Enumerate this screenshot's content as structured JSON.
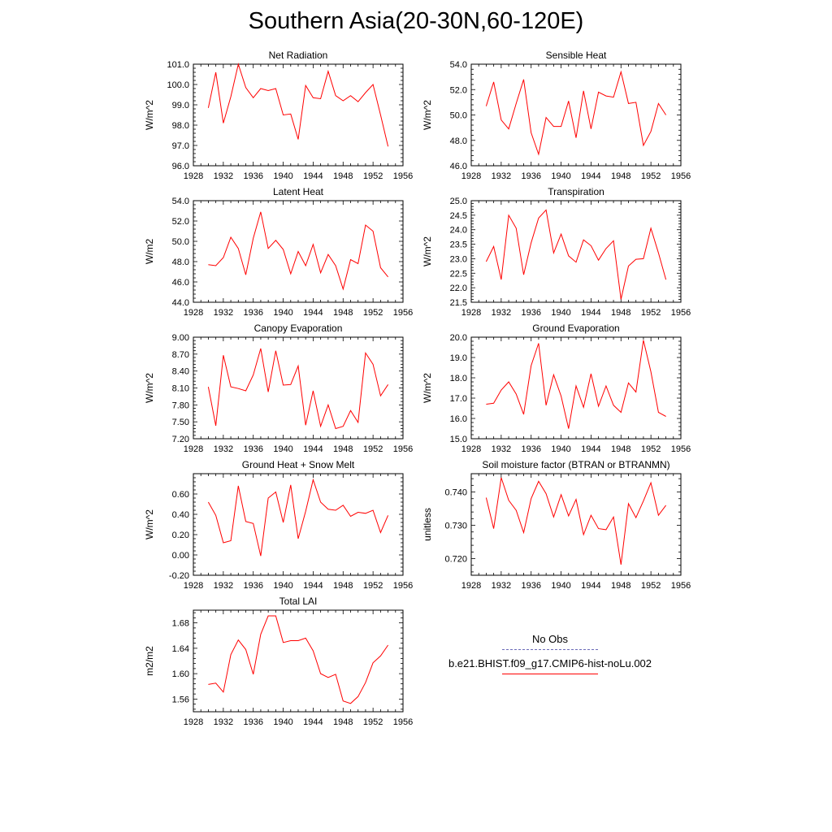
{
  "title": "Southern Asia(20-30N,60-120E)",
  "colors": {
    "series": "#ff0000",
    "obs": "#6a6ab8",
    "axis": "#000000"
  },
  "legend": {
    "obs_label": "No Obs",
    "model_label": "b.e21.BHIST.f09_g17.CMIP6-hist-noLu.002"
  },
  "chart_data": [
    {
      "type": "line",
      "title": "Net Radiation",
      "ylabel": "W/m^2",
      "xlim": [
        1928,
        1956
      ],
      "xticks": [
        1928,
        1932,
        1936,
        1940,
        1944,
        1948,
        1952,
        1956
      ],
      "ylim": [
        96.0,
        101.0
      ],
      "yticks": [
        "96.0",
        "97.0",
        "98.0",
        "99.0",
        "100.0",
        "101.0"
      ],
      "series": [
        {
          "x": [
            1930,
            1931,
            1932,
            1933,
            1934,
            1935,
            1936,
            1937,
            1938,
            1939,
            1940,
            1941,
            1942,
            1943,
            1944,
            1945,
            1946,
            1947,
            1948,
            1949,
            1950,
            1951,
            1952,
            1953,
            1954
          ],
          "values": [
            98.85,
            100.6,
            98.1,
            99.4,
            101.0,
            99.85,
            99.35,
            99.8,
            99.7,
            99.8,
            98.5,
            98.55,
            97.3,
            99.95,
            99.35,
            99.3,
            100.65,
            99.45,
            99.2,
            99.45,
            99.15,
            99.6,
            100.0,
            98.5,
            96.95
          ]
        }
      ]
    },
    {
      "type": "line",
      "title": "Sensible Heat",
      "ylabel": "W/m^2",
      "xlim": [
        1928,
        1956
      ],
      "xticks": [
        1928,
        1932,
        1936,
        1940,
        1944,
        1948,
        1952,
        1956
      ],
      "ylim": [
        46.0,
        54.0
      ],
      "yticks": [
        "46.0",
        "48.0",
        "50.0",
        "52.0",
        "54.0"
      ],
      "series": [
        {
          "x": [
            1930,
            1931,
            1932,
            1933,
            1934,
            1935,
            1936,
            1937,
            1938,
            1939,
            1940,
            1941,
            1942,
            1943,
            1944,
            1945,
            1946,
            1947,
            1948,
            1949,
            1950,
            1951,
            1952,
            1953,
            1954
          ],
          "values": [
            50.7,
            52.6,
            49.6,
            48.9,
            50.9,
            52.8,
            48.6,
            46.9,
            49.8,
            49.1,
            49.1,
            51.1,
            48.2,
            51.9,
            48.9,
            51.8,
            51.5,
            51.4,
            53.4,
            50.9,
            51.0,
            47.6,
            48.7,
            50.9,
            50.0
          ]
        }
      ]
    },
    {
      "type": "line",
      "title": "Latent Heat",
      "ylabel": "W/m2",
      "xlim": [
        1928,
        1956
      ],
      "xticks": [
        1928,
        1932,
        1936,
        1940,
        1944,
        1948,
        1952,
        1956
      ],
      "ylim": [
        44.0,
        54.0
      ],
      "yticks": [
        "44.0",
        "46.0",
        "48.0",
        "50.0",
        "52.0",
        "54.0"
      ],
      "series": [
        {
          "x": [
            1930,
            1931,
            1932,
            1933,
            1934,
            1935,
            1936,
            1937,
            1938,
            1939,
            1940,
            1941,
            1942,
            1943,
            1944,
            1945,
            1946,
            1947,
            1948,
            1949,
            1950,
            1951,
            1952,
            1953,
            1954
          ],
          "values": [
            47.7,
            47.6,
            48.4,
            50.4,
            49.3,
            46.7,
            50.3,
            52.9,
            49.3,
            50.1,
            49.2,
            46.8,
            49.0,
            47.6,
            49.7,
            46.9,
            48.7,
            47.6,
            45.3,
            48.2,
            47.8,
            51.6,
            51.0,
            47.4,
            46.5
          ]
        }
      ]
    },
    {
      "type": "line",
      "title": "Transpiration",
      "ylabel": "W/m^2",
      "xlim": [
        1928,
        1956
      ],
      "xticks": [
        1928,
        1932,
        1936,
        1940,
        1944,
        1948,
        1952,
        1956
      ],
      "ylim": [
        21.5,
        25.0
      ],
      "yticks": [
        "21.5",
        "22.0",
        "22.5",
        "23.0",
        "23.5",
        "24.0",
        "24.5",
        "25.0"
      ],
      "series": [
        {
          "x": [
            1930,
            1931,
            1932,
            1933,
            1934,
            1935,
            1936,
            1937,
            1938,
            1939,
            1940,
            1941,
            1942,
            1943,
            1944,
            1945,
            1946,
            1947,
            1948,
            1949,
            1950,
            1951,
            1952,
            1953,
            1954
          ],
          "values": [
            22.9,
            23.42,
            22.28,
            24.5,
            24.05,
            22.45,
            23.55,
            24.4,
            24.68,
            23.2,
            23.85,
            23.1,
            22.88,
            23.65,
            23.45,
            22.95,
            23.35,
            23.62,
            21.6,
            22.75,
            22.98,
            23.0,
            24.05,
            23.2,
            22.28
          ]
        }
      ]
    },
    {
      "type": "line",
      "title": "Canopy Evaporation",
      "ylabel": "W/m^2",
      "xlim": [
        1928,
        1956
      ],
      "xticks": [
        1928,
        1932,
        1936,
        1940,
        1944,
        1948,
        1952,
        1956
      ],
      "ylim": [
        7.2,
        9.0
      ],
      "yticks": [
        "7.20",
        "7.50",
        "7.80",
        "8.10",
        "8.40",
        "8.70",
        "9.00"
      ],
      "series": [
        {
          "x": [
            1930,
            1931,
            1932,
            1933,
            1934,
            1935,
            1936,
            1937,
            1938,
            1939,
            1940,
            1941,
            1942,
            1943,
            1944,
            1945,
            1946,
            1947,
            1948,
            1949,
            1950,
            1951,
            1952,
            1953,
            1954
          ],
          "values": [
            8.12,
            7.43,
            8.68,
            8.12,
            8.09,
            8.05,
            8.33,
            8.8,
            8.03,
            8.76,
            8.15,
            8.16,
            8.49,
            7.44,
            8.05,
            7.42,
            7.8,
            7.38,
            7.42,
            7.7,
            7.49,
            8.72,
            8.52,
            7.96,
            8.16
          ]
        }
      ]
    },
    {
      "type": "line",
      "title": "Ground Evaporation",
      "ylabel": "W/m^2",
      "xlim": [
        1928,
        1956
      ],
      "xticks": [
        1928,
        1932,
        1936,
        1940,
        1944,
        1948,
        1952,
        1956
      ],
      "ylim": [
        15.0,
        20.0
      ],
      "yticks": [
        "15.0",
        "16.0",
        "17.0",
        "18.0",
        "19.0",
        "20.0"
      ],
      "series": [
        {
          "x": [
            1930,
            1931,
            1932,
            1933,
            1934,
            1935,
            1936,
            1937,
            1938,
            1939,
            1940,
            1941,
            1942,
            1943,
            1944,
            1945,
            1946,
            1947,
            1948,
            1949,
            1950,
            1951,
            1952,
            1953,
            1954
          ],
          "values": [
            16.7,
            16.75,
            17.4,
            17.8,
            17.2,
            16.2,
            18.6,
            19.7,
            16.65,
            18.15,
            17.1,
            15.5,
            17.6,
            16.55,
            18.2,
            16.6,
            17.6,
            16.65,
            16.3,
            17.75,
            17.3,
            19.85,
            18.3,
            16.3,
            16.1
          ]
        }
      ]
    },
    {
      "type": "line",
      "title": "Ground Heat + Snow Melt",
      "ylabel": "W/m^2",
      "xlim": [
        1928,
        1956
      ],
      "xticks": [
        1928,
        1932,
        1936,
        1940,
        1944,
        1948,
        1952,
        1956
      ],
      "ylim": [
        -0.2,
        0.8
      ],
      "yticks": [
        "-0.20",
        "0.00",
        "0.20",
        "0.40",
        "0.60"
      ],
      "series": [
        {
          "x": [
            1930,
            1931,
            1932,
            1933,
            1934,
            1935,
            1936,
            1937,
            1938,
            1939,
            1940,
            1941,
            1942,
            1943,
            1944,
            1945,
            1946,
            1947,
            1948,
            1949,
            1950,
            1951,
            1952,
            1953,
            1954
          ],
          "values": [
            0.52,
            0.39,
            0.12,
            0.14,
            0.68,
            0.33,
            0.31,
            -0.01,
            0.56,
            0.62,
            0.32,
            0.69,
            0.16,
            0.43,
            0.74,
            0.52,
            0.45,
            0.44,
            0.49,
            0.38,
            0.42,
            0.41,
            0.44,
            0.22,
            0.39
          ]
        }
      ]
    },
    {
      "type": "line",
      "title": "Soil moisture factor (BTRAN or BTRANMN)",
      "ylabel": "unitless",
      "xlim": [
        1928,
        1956
      ],
      "xticks": [
        1928,
        1932,
        1936,
        1940,
        1944,
        1948,
        1952,
        1956
      ],
      "ylim": [
        0.715,
        0.7455
      ],
      "yticks": [
        "0.720",
        "0.730",
        "0.740"
      ],
      "series": [
        {
          "x": [
            1930,
            1931,
            1932,
            1933,
            1934,
            1935,
            1936,
            1937,
            1938,
            1939,
            1940,
            1941,
            1942,
            1943,
            1944,
            1945,
            1946,
            1947,
            1948,
            1949,
            1950,
            1951,
            1952,
            1953,
            1954
          ],
          "values": [
            0.7383,
            0.729,
            0.7443,
            0.7375,
            0.7345,
            0.7278,
            0.738,
            0.7432,
            0.7395,
            0.7325,
            0.7392,
            0.7328,
            0.7378,
            0.7272,
            0.733,
            0.729,
            0.7287,
            0.7325,
            0.7182,
            0.7365,
            0.7323,
            0.7373,
            0.7428,
            0.733,
            0.736
          ]
        }
      ]
    },
    {
      "type": "line",
      "title": "Total LAI",
      "ylabel": "m2/m2",
      "xlim": [
        1928,
        1956
      ],
      "xticks": [
        1928,
        1932,
        1936,
        1940,
        1944,
        1948,
        1952,
        1956
      ],
      "ylim": [
        1.54,
        1.7
      ],
      "yticks": [
        "1.56",
        "1.60",
        "1.64",
        "1.68"
      ],
      "series": [
        {
          "x": [
            1930,
            1931,
            1932,
            1933,
            1934,
            1935,
            1936,
            1937,
            1938,
            1939,
            1940,
            1941,
            1942,
            1943,
            1944,
            1945,
            1946,
            1947,
            1948,
            1949,
            1950,
            1951,
            1952,
            1953,
            1954
          ],
          "values": [
            1.583,
            1.585,
            1.571,
            1.63,
            1.653,
            1.638,
            1.599,
            1.662,
            1.691,
            1.691,
            1.649,
            1.652,
            1.652,
            1.656,
            1.636,
            1.6,
            1.594,
            1.599,
            1.557,
            1.553,
            1.564,
            1.586,
            1.617,
            1.628,
            1.645
          ]
        }
      ]
    }
  ]
}
